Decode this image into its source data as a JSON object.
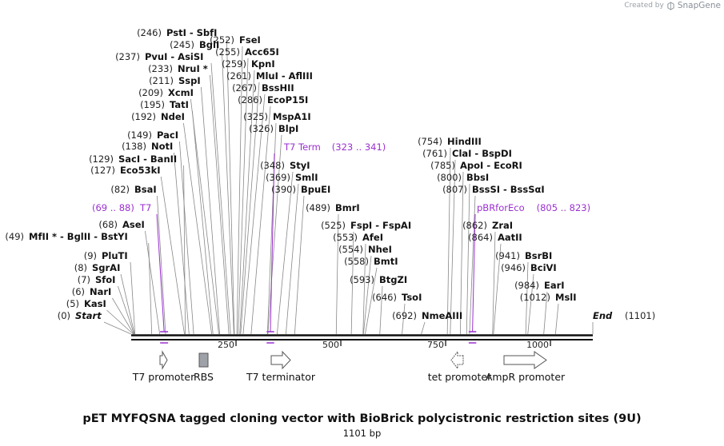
{
  "credit": {
    "prefix": "Created by",
    "brand": "SnapGene"
  },
  "title": "pET MYFQSNA tagged cloning vector with BioBrick polycistronic restriction sites (9U)",
  "subtitle": "1101 bp",
  "map": {
    "length": 1101,
    "ticks": [
      {
        "value": 250,
        "label": "250"
      },
      {
        "value": 500,
        "label": "500"
      },
      {
        "value": 750,
        "label": "750"
      },
      {
        "value": 1000,
        "label": "1000"
      }
    ],
    "colors": {
      "line": "#111111",
      "tick": "#333333",
      "feature": "#9b30d0",
      "leader": "#888888"
    },
    "sites": [
      {
        "pos": 0,
        "pos_label": "(0)",
        "name": "Start",
        "italic": true
      },
      {
        "pos": 5,
        "pos_label": "(5)",
        "name": "KasI"
      },
      {
        "pos": 6,
        "pos_label": "(6)",
        "name": "NarI"
      },
      {
        "pos": 7,
        "pos_label": "(7)",
        "name": "SfoI"
      },
      {
        "pos": 8,
        "pos_label": "(8)",
        "name": "SgrAI"
      },
      {
        "pos": 9,
        "pos_label": "(9)",
        "name": "PluTI"
      },
      {
        "pos": 49,
        "pos_label": "(49)",
        "name": "MfII * - BglII - BstYI"
      },
      {
        "pos": 68,
        "pos_label": "(68)",
        "name": "AseI"
      },
      {
        "pos": 82,
        "pos_label": "(82)",
        "name": "BsaI"
      },
      {
        "pos": 127,
        "pos_label": "(127)",
        "name": "Eco53kI"
      },
      {
        "pos": 129,
        "pos_label": "(129)",
        "name": "SacI - BanII"
      },
      {
        "pos": 138,
        "pos_label": "(138)",
        "name": "NotI"
      },
      {
        "pos": 149,
        "pos_label": "(149)",
        "name": "PacI"
      },
      {
        "pos": 192,
        "pos_label": "(192)",
        "name": "NdeI"
      },
      {
        "pos": 195,
        "pos_label": "(195)",
        "name": "TatI"
      },
      {
        "pos": 209,
        "pos_label": "(209)",
        "name": "XcmI"
      },
      {
        "pos": 211,
        "pos_label": "(211)",
        "name": "SspI"
      },
      {
        "pos": 233,
        "pos_label": "(233)",
        "name": "NruI *"
      },
      {
        "pos": 237,
        "pos_label": "(237)",
        "name": "PvuI - AsiSI"
      },
      {
        "pos": 245,
        "pos_label": "(245)",
        "name": "BglI"
      },
      {
        "pos": 246,
        "pos_label": "(246)",
        "name": "PstI - SbfI"
      },
      {
        "pos": 252,
        "pos_label": "(252)",
        "name": "FseI"
      },
      {
        "pos": 255,
        "pos_label": "(255)",
        "name": "Acc65I"
      },
      {
        "pos": 259,
        "pos_label": "(259)",
        "name": "KpnI"
      },
      {
        "pos": 261,
        "pos_label": "(261)",
        "name": "MluI - AflIII"
      },
      {
        "pos": 267,
        "pos_label": "(267)",
        "name": "BssHII"
      },
      {
        "pos": 286,
        "pos_label": "(286)",
        "name": "EcoP15I"
      },
      {
        "pos": 325,
        "pos_label": "(325)",
        "name": "MspA1I"
      },
      {
        "pos": 326,
        "pos_label": "(326)",
        "name": "BlpI"
      },
      {
        "pos": 348,
        "pos_label": "(348)",
        "name": "StyI"
      },
      {
        "pos": 369,
        "pos_label": "(369)",
        "name": "SmlI"
      },
      {
        "pos": 390,
        "pos_label": "(390)",
        "name": "BpuEI"
      },
      {
        "pos": 489,
        "pos_label": "(489)",
        "name": "BmrI"
      },
      {
        "pos": 525,
        "pos_label": "(525)",
        "name": "FspI - FspAI"
      },
      {
        "pos": 553,
        "pos_label": "(553)",
        "name": "AfeI"
      },
      {
        "pos": 554,
        "pos_label": "(554)",
        "name": "NheI"
      },
      {
        "pos": 558,
        "pos_label": "(558)",
        "name": "BmtI"
      },
      {
        "pos": 593,
        "pos_label": "(593)",
        "name": "BtgZI"
      },
      {
        "pos": 646,
        "pos_label": "(646)",
        "name": "TsoI"
      },
      {
        "pos": 692,
        "pos_label": "(692)",
        "name": "NmeAIII"
      },
      {
        "pos": 754,
        "pos_label": "(754)",
        "name": "HindIII"
      },
      {
        "pos": 761,
        "pos_label": "(761)",
        "name": "ClaI - BspDI"
      },
      {
        "pos": 785,
        "pos_label": "(785)",
        "name": "ApoI - EcoRI"
      },
      {
        "pos": 800,
        "pos_label": "(800)",
        "name": "BbsI"
      },
      {
        "pos": 807,
        "pos_label": "(807)",
        "name": "BssSI - BssSαI"
      },
      {
        "pos": 862,
        "pos_label": "(862)",
        "name": "ZraI"
      },
      {
        "pos": 864,
        "pos_label": "(864)",
        "name": "AatII"
      },
      {
        "pos": 941,
        "pos_label": "(941)",
        "name": "BsrBI"
      },
      {
        "pos": 946,
        "pos_label": "(946)",
        "name": "BciVI"
      },
      {
        "pos": 984,
        "pos_label": "(984)",
        "name": "EarI"
      },
      {
        "pos": 1012,
        "pos_label": "(1012)",
        "name": "MslI"
      },
      {
        "pos": 1101,
        "pos_label": "(1101)",
        "name": "End",
        "italic": true
      }
    ],
    "features": [
      {
        "name": "T7",
        "range": "(69 .. 88)",
        "start": 69,
        "end": 88
      },
      {
        "name": "T7 Term",
        "range": "(323 .. 341)",
        "start": 323,
        "end": 341
      },
      {
        "name": "pBRforEco",
        "range": "(805 .. 823)",
        "start": 805,
        "end": 823
      }
    ],
    "annotations": [
      {
        "name": "T7 promoter",
        "type": "promoter",
        "direction": "forward",
        "pos": 69
      },
      {
        "name": "RBS",
        "type": "rbs",
        "pos": 167
      },
      {
        "name": "T7 terminator",
        "type": "terminator",
        "direction": "forward",
        "pos": 330
      },
      {
        "name": "tet promoter",
        "type": "promoter",
        "direction": "reverse",
        "pos": 757
      },
      {
        "name": "AmpR promoter",
        "type": "promoter",
        "direction": "forward",
        "pos": 900
      }
    ]
  }
}
